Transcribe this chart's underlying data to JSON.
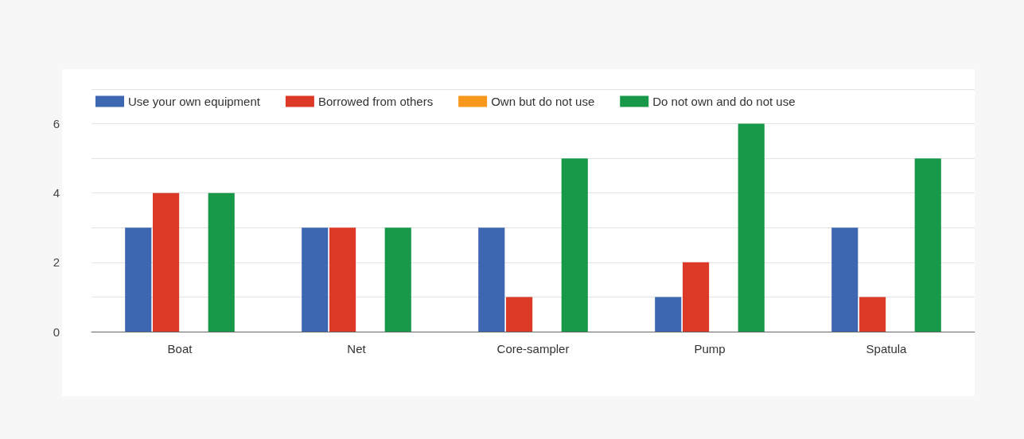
{
  "chart_data": {
    "type": "bar",
    "categories": [
      "Boat",
      "Net",
      "Core-sampler",
      "Pump",
      "Spatula"
    ],
    "series": [
      {
        "name": "Use your own equipment",
        "color": "#3d67b1",
        "values": [
          3,
          3,
          3,
          1,
          3
        ]
      },
      {
        "name": "Borrowed from others",
        "color": "#dc3a26",
        "values": [
          4,
          3,
          1,
          2,
          1
        ]
      },
      {
        "name": "Own but do not use",
        "color": "#f7981d",
        "values": [
          0,
          0,
          0,
          0,
          0
        ]
      },
      {
        "name": "Do not own and do not use",
        "color": "#18994a",
        "values": [
          4,
          3,
          5,
          6,
          5
        ]
      }
    ],
    "ylim": [
      0,
      7
    ],
    "yticks": [
      0,
      {
        "value": 1,
        "label": null
      },
      2,
      {
        "value": 3,
        "label": null
      },
      4,
      {
        "value": 5,
        "label": null
      },
      6,
      {
        "value": 7,
        "label": null
      }
    ],
    "grid": "y",
    "legend": "top"
  }
}
